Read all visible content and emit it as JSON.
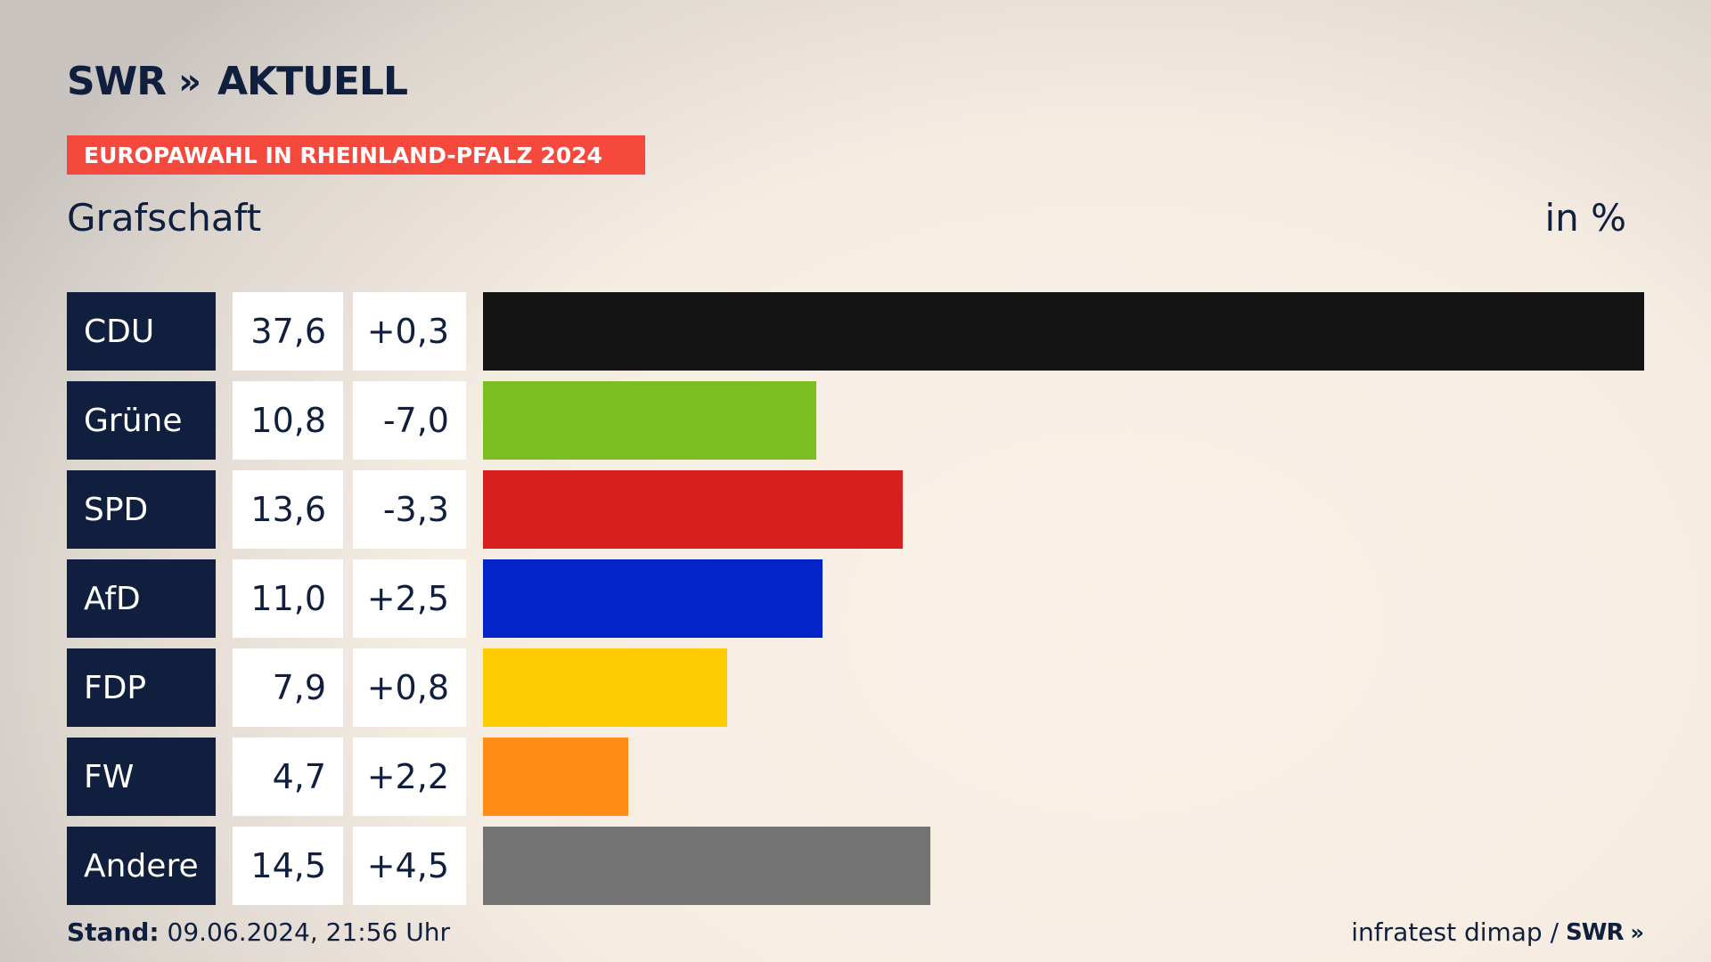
{
  "brand": {
    "name": "SWR",
    "chevrons": "»",
    "suffix": "AKTUELL"
  },
  "banner": "EUROPAWAHL IN RHEINLAND-PFALZ 2024",
  "region": "Grafschaft",
  "unit": "in %",
  "colors": {
    "banner": "#f5493d",
    "label_bg": "#0f1f3d"
  },
  "chart_data": {
    "type": "bar",
    "orientation": "horizontal",
    "categories": [
      "CDU",
      "Grüne",
      "SPD",
      "AfD",
      "FDP",
      "FW",
      "Andere"
    ],
    "values": [
      37.6,
      10.8,
      13.6,
      11.0,
      7.9,
      4.7,
      14.5
    ],
    "value_labels": [
      "37,6",
      "10,8",
      "13,6",
      "11,0",
      "7,9",
      "4,7",
      "14,5"
    ],
    "changes": [
      0.3,
      -7.0,
      -3.3,
      2.5,
      0.8,
      2.2,
      4.5
    ],
    "change_labels": [
      "+0,3",
      "-7,0",
      "-3,3",
      "+2,5",
      "+0,8",
      "+2,2",
      "+4,5"
    ],
    "colors": [
      "#141414",
      "#7abf1f",
      "#d61f1f",
      "#0324c8",
      "#ffcc05",
      "#ff8c15",
      "#737373"
    ],
    "title": "",
    "xlabel": "",
    "ylabel": "",
    "xlim": [
      0,
      37.6
    ]
  },
  "footer": {
    "stand_label": "Stand:",
    "stand_value": "09.06.2024, 21:56 Uhr",
    "source": "infratest dimap /",
    "source_brand": "SWR",
    "source_chevrons": "»"
  }
}
